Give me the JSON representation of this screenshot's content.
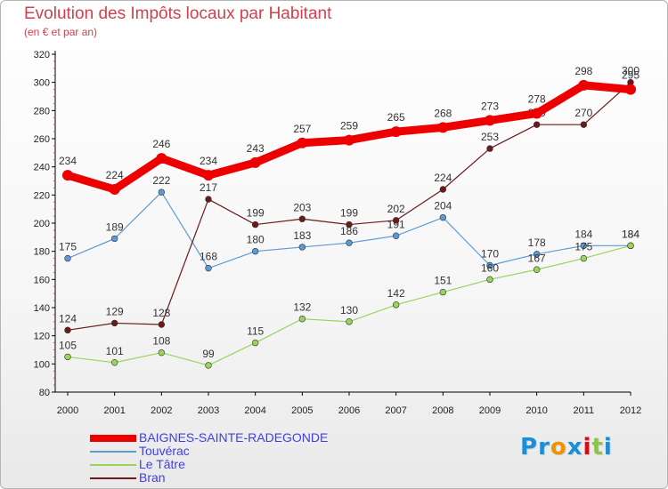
{
  "chart_data": {
    "type": "line",
    "title": "Evolution des Impôts locaux par Habitant",
    "subtitle": "(en € et par an)",
    "x": [
      "2000",
      "2001",
      "2002",
      "2003",
      "2004",
      "2005",
      "2006",
      "2007",
      "2008",
      "2009",
      "2010",
      "2011",
      "2012"
    ],
    "ylim": [
      80,
      320
    ],
    "yticks": [
      80,
      100,
      120,
      140,
      160,
      180,
      200,
      220,
      240,
      260,
      280,
      300,
      320
    ],
    "grid": false,
    "legend_position": "bottom-left",
    "series": [
      {
        "name": "BAIGNES-SAINTE-RADEGONDE",
        "color": "#ee0000",
        "values": [
          234,
          224,
          246,
          234,
          243,
          257,
          259,
          265,
          268,
          273,
          278,
          298,
          295
        ]
      },
      {
        "name": "Touvérac",
        "color": "#5b9bd5",
        "values": [
          175,
          189,
          222,
          168,
          180,
          183,
          186,
          191,
          204,
          170,
          178,
          184,
          184
        ]
      },
      {
        "name": "Le Tâtre",
        "color": "#9ad45a",
        "values": [
          105,
          101,
          108,
          99,
          115,
          132,
          130,
          142,
          151,
          160,
          167,
          175,
          184
        ]
      },
      {
        "name": "Bran",
        "color": "#6b1a1a",
        "values": [
          124,
          129,
          128,
          217,
          199,
          203,
          199,
          202,
          224,
          253,
          270,
          270,
          300
        ]
      }
    ]
  },
  "logo": {
    "letters": [
      "P",
      "r",
      "o",
      "x",
      "i",
      "t",
      "i"
    ],
    "colors": [
      "#1a8fd6",
      "#1a8fd6",
      "#f39200",
      "#1a8fd6",
      "#e30613",
      "#8dc63f",
      "#1a8fd6"
    ]
  }
}
